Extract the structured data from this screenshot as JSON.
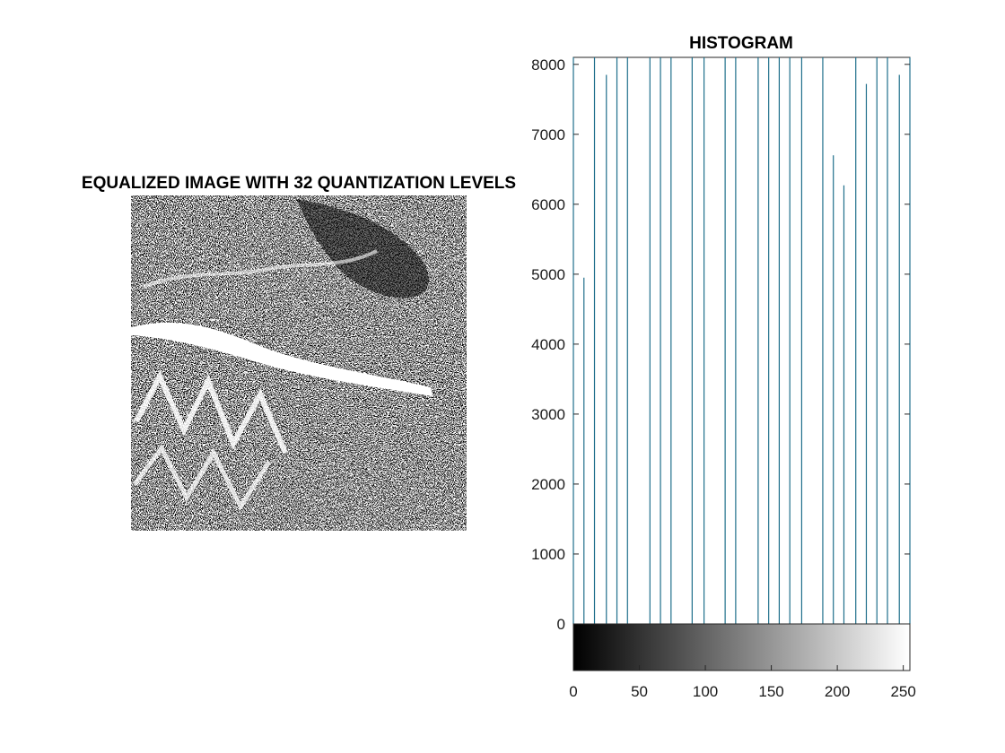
{
  "image_panel": {
    "title": "EQUALIZED IMAGE WITH 32 QUANTIZATION LEVELS",
    "pixel_colors": [
      "#000000",
      "#ffffff"
    ]
  },
  "chart_data": {
    "type": "bar",
    "title": "HISTOGRAM",
    "xlabel": "",
    "ylabel": "",
    "xlim": [
      0,
      255
    ],
    "ylim": [
      0,
      8100
    ],
    "yticks": [
      0,
      1000,
      2000,
      3000,
      4000,
      5000,
      6000,
      7000,
      8000
    ],
    "xticks": [
      0,
      50,
      100,
      150,
      200,
      250
    ],
    "bar_color": "#1f6f8b",
    "bars": [
      {
        "x": 0,
        "y": 8100
      },
      {
        "x": 8,
        "y": 4950
      },
      {
        "x": 16,
        "y": 8100
      },
      {
        "x": 25,
        "y": 7850
      },
      {
        "x": 33,
        "y": 8100
      },
      {
        "x": 41,
        "y": 8100
      },
      {
        "x": 58,
        "y": 8100
      },
      {
        "x": 66,
        "y": 8100
      },
      {
        "x": 74,
        "y": 8100
      },
      {
        "x": 90,
        "y": 8100
      },
      {
        "x": 99,
        "y": 8100
      },
      {
        "x": 115,
        "y": 8100
      },
      {
        "x": 123,
        "y": 8100
      },
      {
        "x": 140,
        "y": 8100
      },
      {
        "x": 148,
        "y": 8100
      },
      {
        "x": 156,
        "y": 8100
      },
      {
        "x": 164,
        "y": 8100
      },
      {
        "x": 173,
        "y": 8100
      },
      {
        "x": 189,
        "y": 8100
      },
      {
        "x": 197,
        "y": 6700
      },
      {
        "x": 205,
        "y": 6270
      },
      {
        "x": 214,
        "y": 8100
      },
      {
        "x": 222,
        "y": 7720
      },
      {
        "x": 230,
        "y": 8100
      },
      {
        "x": 238,
        "y": 8100
      },
      {
        "x": 247,
        "y": 7850
      },
      {
        "x": 255,
        "y": 8100
      }
    ],
    "colorbar": {
      "colormap": "gray",
      "range": [
        0,
        255
      ]
    }
  }
}
